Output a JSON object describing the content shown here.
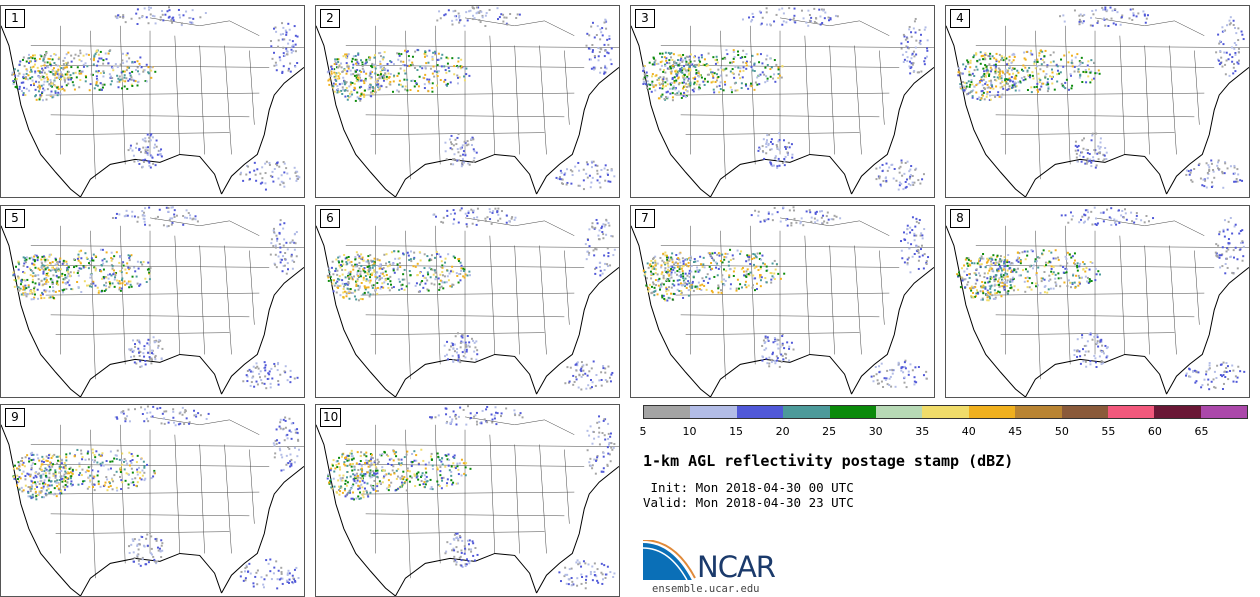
{
  "panels": [
    "1",
    "2",
    "3",
    "4",
    "5",
    "6",
    "7",
    "8",
    "9",
    "10"
  ],
  "colorbar": {
    "colors": [
      "#a4a4a4",
      "#b2bce6",
      "#5058d8",
      "#4c9a9a",
      "#0a8a0a",
      "#b7d9b5",
      "#f0dc6a",
      "#f0b01e",
      "#b98432",
      "#8a5a3a",
      "#f2587c",
      "#6a1836",
      "#ab48aa"
    ],
    "ticks": [
      "5",
      "10",
      "15",
      "20",
      "25",
      "30",
      "35",
      "40",
      "45",
      "50",
      "55",
      "60",
      "65"
    ]
  },
  "title": "1-km AGL reflectivity postage stamp (dBZ)",
  "init": " Init: Mon 2018-04-30 00 UTC",
  "valid": "Valid: Mon 2018-04-30 23 UTC",
  "logo": {
    "text": "NCAR",
    "url_text": "ensemble.ucar.edu"
  }
}
